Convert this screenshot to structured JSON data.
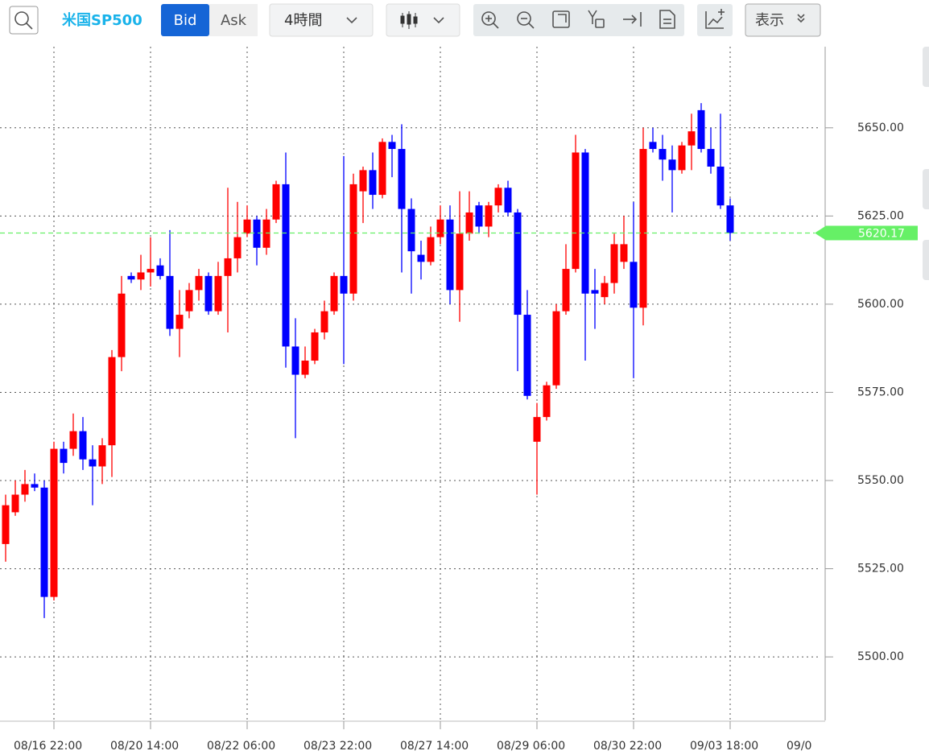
{
  "toolbar": {
    "symbol": "米国SP500",
    "bid": "Bid",
    "ask": "Ask",
    "timeframe": "4時間",
    "display": "表示"
  },
  "chart_data": {
    "type": "candlestick",
    "categories": [
      null,
      null,
      null,
      null,
      null,
      "08/16 22:00",
      null,
      null,
      null,
      null,
      null,
      null,
      null,
      null,
      null,
      "08/20 14:00",
      null,
      null,
      null,
      null,
      null,
      null,
      null,
      null,
      null,
      "08/22 06:00",
      null,
      null,
      null,
      null,
      null,
      null,
      null,
      null,
      null,
      "08/23 22:00",
      null,
      null,
      null,
      null,
      null,
      null,
      null,
      null,
      null,
      "08/27 14:00",
      null,
      null,
      null,
      null,
      null,
      null,
      null,
      null,
      null,
      "08/29 06:00",
      null,
      null,
      null,
      null,
      null,
      null,
      null,
      null,
      null,
      "08/30 22:00",
      null,
      null,
      null,
      null,
      null,
      null,
      null,
      null,
      null,
      "09/03 18:00",
      null,
      null,
      null,
      null,
      null,
      null,
      null,
      null,
      null,
      "09/0"
    ],
    "open": [
      5532,
      5541,
      5546,
      5549,
      5548,
      5517,
      5559,
      5559,
      5564,
      5556,
      5554,
      5560,
      5585,
      5608,
      5607,
      5609,
      5611,
      5608,
      5593,
      5598,
      5604,
      5608,
      5598,
      5608,
      5613,
      5620,
      5624,
      5616,
      5624,
      5634,
      5588,
      5580,
      5584,
      5592,
      5598,
      5608,
      5603,
      5632,
      5638,
      5631,
      5646,
      5644,
      5627,
      5614,
      5612,
      5619,
      5624,
      5604,
      5620,
      5628,
      5622,
      5628,
      5633,
      5626,
      5597,
      5561,
      5568,
      5577,
      5598,
      5610,
      5643,
      5604,
      5602,
      5606,
      5612,
      5612,
      5599,
      5646,
      5644,
      5641,
      5638,
      5645,
      5655,
      5644,
      5639,
      5628,
      null,
      null,
      null,
      null,
      null,
      null,
      null,
      null,
      null,
      null
    ],
    "high": [
      5546,
      5550,
      5553,
      5552,
      5550,
      5561,
      5561,
      5569,
      5568,
      5560,
      5562,
      5587,
      5608,
      5609,
      5614,
      5619,
      5613,
      5621,
      5604,
      5606,
      5610,
      5609,
      5612,
      5633,
      5629,
      5628,
      5625,
      5627,
      5635,
      5643,
      5596,
      5588,
      5593,
      5601,
      5609,
      5642,
      5637,
      5639,
      5643,
      5647,
      5648,
      5651,
      5630,
      5618,
      5622,
      5628,
      5628,
      5632,
      5632,
      5629,
      5629,
      5634,
      5635,
      5627,
      5604,
      5572,
      5578,
      5600,
      5617,
      5648,
      5644,
      5610,
      5608,
      5620,
      5625,
      5629,
      5650,
      5650,
      5648,
      5645,
      5646,
      5654,
      5657,
      5650,
      5654,
      5630,
      null,
      null,
      null,
      null,
      null,
      null,
      null,
      null,
      null,
      null
    ],
    "low": [
      5527,
      5540,
      5544,
      5547,
      5511,
      5516,
      5552,
      5557,
      5553,
      5543,
      5549,
      5551,
      5581,
      5606,
      5604,
      5605,
      5607,
      5591,
      5585,
      5596,
      5601,
      5597,
      5597,
      5592,
      5609,
      5619,
      5611,
      5614,
      5623,
      5582,
      5562,
      5579,
      5583,
      5590,
      5597,
      5583,
      5601,
      5623,
      5627,
      5630,
      5636,
      5609,
      5603,
      5607,
      5611,
      5617,
      5600,
      5595,
      5618,
      5620,
      5619,
      5626,
      5625,
      5581,
      5573,
      5546,
      5567,
      5576,
      5597,
      5609,
      5584,
      5593,
      5600,
      5603,
      5610,
      5579,
      5594,
      5643,
      5635,
      5626,
      5637,
      5638,
      5643,
      5637,
      5627,
      5618,
      null,
      null,
      null,
      null,
      null,
      null,
      null,
      null,
      null,
      null
    ],
    "close": [
      5543,
      5546,
      5549,
      5548,
      5517,
      5559,
      5555,
      5564,
      5556,
      5554,
      5560,
      5585,
      5603,
      5607,
      5609,
      5610,
      5608,
      5593,
      5597,
      5604,
      5608,
      5598,
      5608,
      5613,
      5619,
      5624,
      5616,
      5624,
      5634,
      5588,
      5580,
      5584,
      5592,
      5598,
      5608,
      5603,
      5634,
      5638,
      5631,
      5646,
      5644,
      5627,
      5615,
      5612,
      5619,
      5624,
      5604,
      5620,
      5626,
      5622,
      5628,
      5633,
      5626,
      5597,
      5574,
      5568,
      5577,
      5598,
      5610,
      5643,
      5603,
      5603,
      5606,
      5617,
      5617,
      5599,
      5644,
      5644,
      5641,
      5638,
      5645,
      5649,
      5644,
      5639,
      5628,
      5620.17,
      null,
      null,
      null,
      null,
      null,
      null,
      null,
      null,
      null,
      null
    ],
    "up_color": "#ff0000",
    "down_color": "#0000ff",
    "price_color": "#66f066",
    "ylim": [
      5482,
      5673
    ],
    "yticks": [
      {
        "value": 5500,
        "label": "5500.00"
      },
      {
        "value": 5525,
        "label": "5525.00"
      },
      {
        "value": 5550,
        "label": "5550.00"
      },
      {
        "value": 5575,
        "label": "5575.00"
      },
      {
        "value": 5600,
        "label": "5600.00"
      },
      {
        "value": 5625,
        "label": "5625.00"
      },
      {
        "value": 5650,
        "label": "5650.00"
      }
    ],
    "grid": true
  }
}
